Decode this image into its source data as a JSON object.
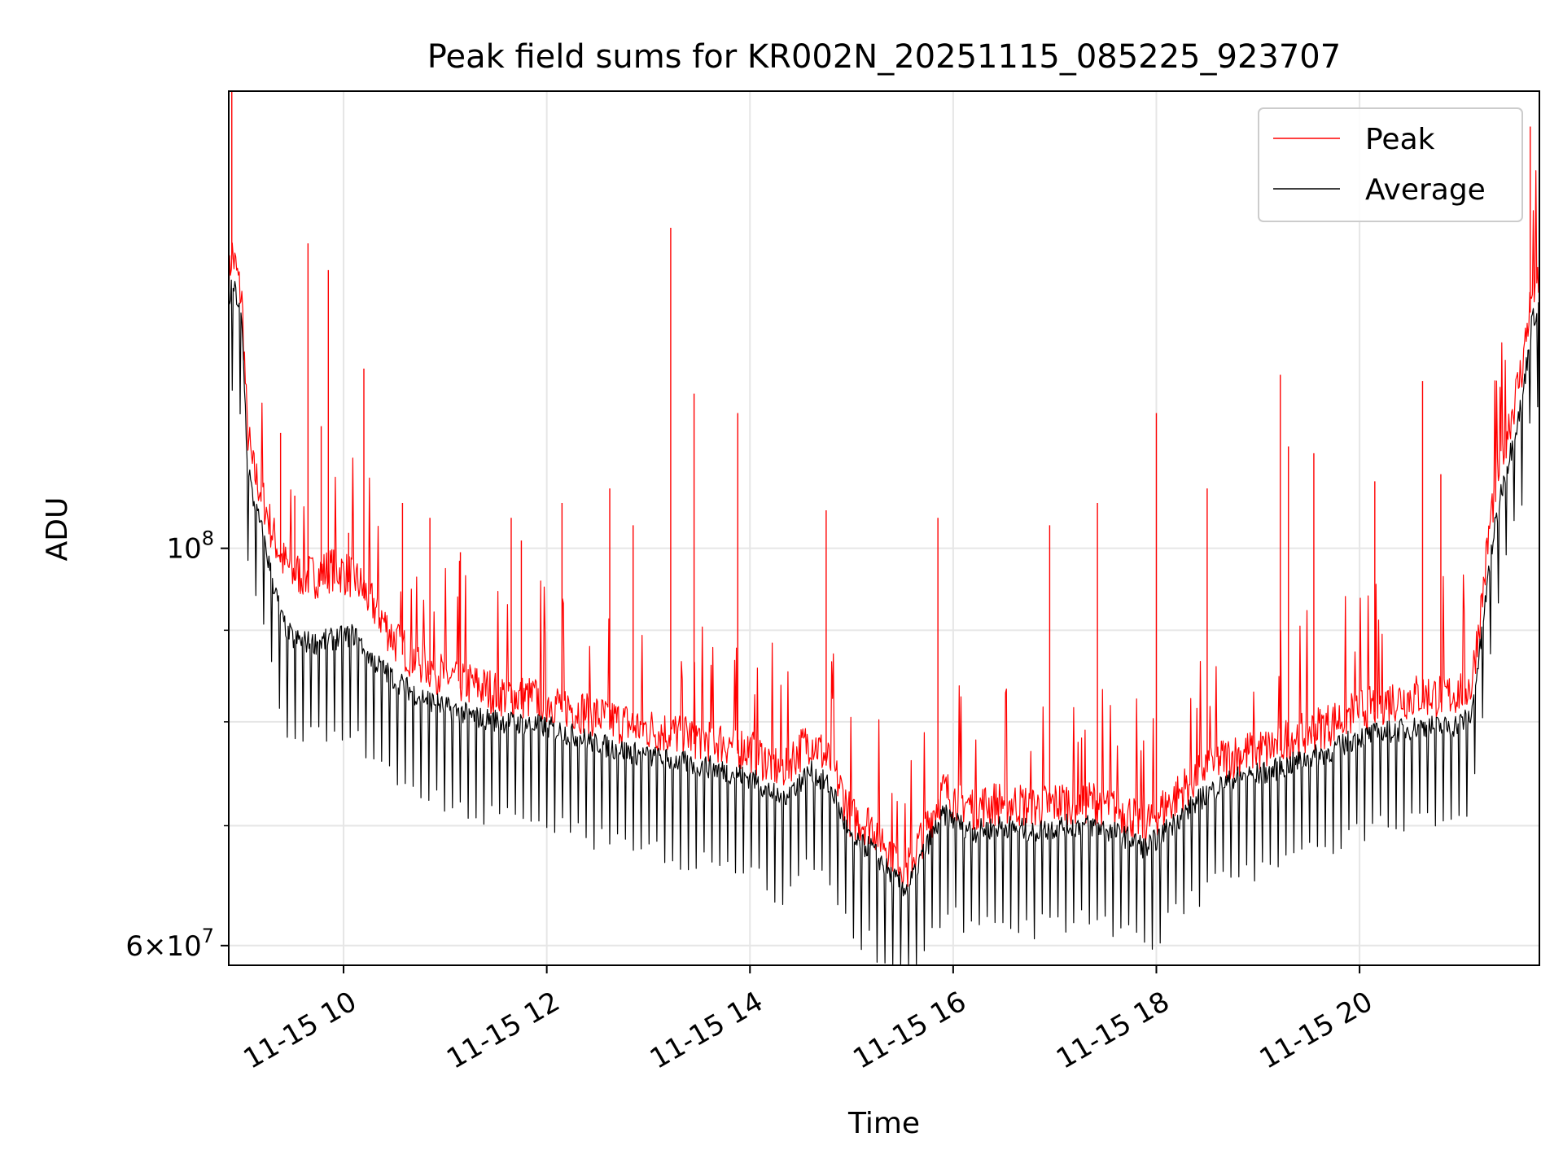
{
  "chart_data": {
    "type": "line",
    "title": "Peak field sums for KR002N_20251115_085225_923707",
    "xlabel": "Time",
    "ylabel": "ADU",
    "yscale": "log",
    "ylim": [
      58500000,
      180000000
    ],
    "xlim": [
      8.87,
      21.77
    ],
    "grid": true,
    "legend_position": "top-right",
    "x_ticks": [
      {
        "value": 10,
        "label": "11-15 10"
      },
      {
        "value": 12,
        "label": "11-15 12"
      },
      {
        "value": 14,
        "label": "11-15 14"
      },
      {
        "value": 16,
        "label": "11-15 16"
      },
      {
        "value": 18,
        "label": "11-15 18"
      },
      {
        "value": 20,
        "label": "11-15 20"
      }
    ],
    "y_major_ticks": [
      {
        "value": 60000000,
        "mant": "6",
        "base": "10",
        "exp": "7"
      },
      {
        "value": 100000000,
        "mant": "",
        "base": "10",
        "exp": "8"
      }
    ],
    "y_minor_ticks": [
      70000000,
      80000000,
      90000000
    ],
    "series": [
      {
        "name": "Peak",
        "color": "#ff0000",
        "x": [
          8.87,
          8.9,
          8.95,
          9.0,
          9.05,
          9.1,
          9.2,
          9.3,
          9.4,
          9.5,
          9.7,
          9.9,
          10.1,
          10.3,
          10.5,
          10.7,
          11.0,
          11.3,
          11.6,
          12.0,
          12.3,
          12.6,
          13.0,
          13.3,
          13.6,
          14.0,
          14.3,
          14.6,
          14.8,
          15.0,
          15.2,
          15.4,
          15.55,
          15.7,
          15.9,
          16.2,
          16.5,
          16.8,
          17.1,
          17.4,
          17.7,
          17.9,
          18.2,
          18.5,
          18.8,
          19.1,
          19.4,
          19.7,
          20.0,
          20.3,
          20.6,
          20.9,
          21.1,
          21.2,
          21.3,
          21.4,
          21.5,
          21.6,
          21.7,
          21.77
        ],
        "y": [
          139000000,
          145000000,
          141000000,
          136000000,
          116000000,
          110000000,
          106000000,
          101000000,
          97500000,
          96000000,
          95500000,
          96500000,
          95500000,
          92000000,
          88000000,
          86000000,
          84000000,
          83000000,
          82000000,
          81500000,
          80500000,
          79500000,
          78500000,
          78000000,
          77500000,
          76500000,
          74500000,
          77500000,
          75000000,
          70000000,
          69500000,
          67000000,
          65500000,
          68500000,
          72500000,
          71000000,
          71500000,
          71000000,
          71500000,
          71500000,
          70500000,
          69500000,
          72000000,
          75000000,
          76000000,
          76500000,
          78000000,
          79000000,
          80500000,
          81500000,
          82000000,
          82000000,
          83000000,
          92000000,
          104000000,
          112000000,
          118000000,
          125000000,
          138000000,
          140000000
        ],
        "spikes": [
          {
            "x": 8.9,
            "y": 180000000
          },
          {
            "x": 9.38,
            "y": 116000000
          },
          {
            "x": 9.52,
            "y": 107000000
          },
          {
            "x": 9.65,
            "y": 148000000
          },
          {
            "x": 9.78,
            "y": 117000000
          },
          {
            "x": 9.85,
            "y": 143000000
          },
          {
            "x": 10.05,
            "y": 102000000
          },
          {
            "x": 10.2,
            "y": 126000000
          },
          {
            "x": 10.58,
            "y": 106000000
          },
          {
            "x": 10.85,
            "y": 104000000
          },
          {
            "x": 11.15,
            "y": 99500000
          },
          {
            "x": 11.65,
            "y": 104000000
          },
          {
            "x": 11.75,
            "y": 101000000
          },
          {
            "x": 12.15,
            "y": 106000000
          },
          {
            "x": 12.62,
            "y": 108000000
          },
          {
            "x": 12.85,
            "y": 103000000
          },
          {
            "x": 13.22,
            "y": 151000000
          },
          {
            "x": 13.45,
            "y": 122000000
          },
          {
            "x": 13.88,
            "y": 119000000
          },
          {
            "x": 14.75,
            "y": 105000000
          },
          {
            "x": 15.85,
            "y": 104000000
          },
          {
            "x": 16.95,
            "y": 103000000
          },
          {
            "x": 17.42,
            "y": 106000000
          },
          {
            "x": 18.0,
            "y": 119000000
          },
          {
            "x": 18.5,
            "y": 108000000
          },
          {
            "x": 19.22,
            "y": 125000000
          },
          {
            "x": 19.3,
            "y": 114000000
          },
          {
            "x": 19.55,
            "y": 113000000
          },
          {
            "x": 20.15,
            "y": 109000000
          },
          {
            "x": 20.62,
            "y": 124000000
          },
          {
            "x": 20.8,
            "y": 110000000
          },
          {
            "x": 21.68,
            "y": 172000000
          }
        ]
      },
      {
        "name": "Average",
        "color": "#000000",
        "x": [
          8.87,
          8.9,
          8.95,
          9.0,
          9.05,
          9.1,
          9.2,
          9.3,
          9.4,
          9.5,
          9.7,
          9.9,
          10.1,
          10.3,
          10.5,
          10.7,
          11.0,
          11.3,
          11.6,
          12.0,
          12.3,
          12.6,
          13.0,
          13.3,
          13.6,
          14.0,
          14.3,
          14.6,
          14.8,
          15.0,
          15.2,
          15.4,
          15.55,
          15.7,
          15.9,
          16.2,
          16.5,
          16.8,
          17.1,
          17.4,
          17.7,
          17.9,
          18.2,
          18.5,
          18.8,
          19.1,
          19.4,
          19.7,
          20.0,
          20.3,
          20.6,
          20.9,
          21.1,
          21.2,
          21.3,
          21.4,
          21.5,
          21.6,
          21.7,
          21.77
        ],
        "y": [
          136000000,
          141000000,
          138000000,
          133000000,
          113000000,
          107000000,
          102000000,
          96000000,
          91000000,
          89000000,
          88500000,
          89000000,
          89500000,
          86500000,
          84500000,
          83000000,
          81500000,
          80500000,
          80000000,
          79500000,
          78500000,
          77500000,
          76500000,
          76000000,
          75500000,
          74500000,
          72500000,
          75000000,
          73500000,
          68500000,
          68000000,
          65500000,
          64500000,
          67500000,
          71000000,
          69500000,
          70000000,
          69500000,
          70000000,
          70000000,
          69000000,
          68000000,
          70500000,
          73000000,
          74500000,
          75000000,
          76000000,
          77000000,
          78500000,
          79000000,
          79500000,
          79500000,
          80500000,
          89000000,
          100000000,
          108000000,
          114000000,
          121000000,
          134000000,
          137000000
        ]
      }
    ]
  }
}
